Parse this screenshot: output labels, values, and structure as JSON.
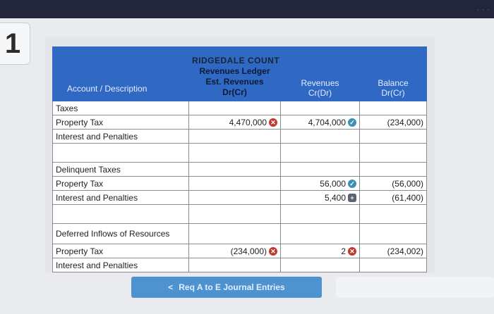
{
  "question_number": "1",
  "table": {
    "title_lines": [
      "RIDGEDALE COUNTY",
      "Revenues Ledger"
    ],
    "headers": {
      "account": "Account / Description",
      "est_revenues": [
        "Est. Revenues",
        "Dr(Cr)"
      ],
      "revenues": [
        "Revenues",
        "Cr(Dr)"
      ],
      "balance": [
        "Balance",
        "Dr(Cr)"
      ]
    },
    "rows": [
      {
        "account": "Taxes",
        "est": "",
        "est_icon": "",
        "rev": "",
        "rev_icon": "",
        "bal": ""
      },
      {
        "account": "Property Tax",
        "est": "4,470,000",
        "est_icon": "x",
        "rev": "4,704,000",
        "rev_icon": "ok",
        "bal": "(234,000)"
      },
      {
        "account": "Interest and Penalties",
        "est": "",
        "est_icon": "",
        "rev": "",
        "rev_icon": "",
        "bal": ""
      },
      {
        "account": "",
        "est": "",
        "est_icon": "",
        "rev": "",
        "rev_icon": "",
        "bal": ""
      },
      {
        "account": "Delinquent Taxes",
        "est": "",
        "est_icon": "",
        "rev": "",
        "rev_icon": "",
        "bal": ""
      },
      {
        "account": "Property Tax",
        "est": "",
        "est_icon": "",
        "rev": "56,000",
        "rev_icon": "ok",
        "bal": "(56,000)"
      },
      {
        "account": "Interest and Penalties",
        "est": "",
        "est_icon": "",
        "rev": "5,400",
        "rev_icon": "plus",
        "bal": "(61,400)"
      },
      {
        "account": "",
        "est": "",
        "est_icon": "",
        "rev": "",
        "rev_icon": "",
        "bal": ""
      },
      {
        "account": "Deferred Inflows of Resources",
        "est": "",
        "est_icon": "",
        "rev": "",
        "rev_icon": "",
        "bal": ""
      },
      {
        "account": "Property Tax",
        "est": "(234,000)",
        "est_icon": "x",
        "rev": "2",
        "rev_icon": "x",
        "bal": "(234,002)"
      },
      {
        "account": "Interest and Penalties",
        "est": "",
        "est_icon": "",
        "rev": "",
        "rev_icon": "",
        "bal": ""
      }
    ]
  },
  "nav_button": {
    "label": "Req A to E Journal Entries",
    "chevron": "<"
  },
  "icons": {
    "x": "close-circle-icon",
    "ok": "check-circle-icon",
    "plus": "plus-badge-icon"
  },
  "colors": {
    "header_blue": "#2f69c4",
    "button_blue": "#4e93cf",
    "error_red": "#c0392b",
    "check_teal": "#3d8fb5"
  }
}
